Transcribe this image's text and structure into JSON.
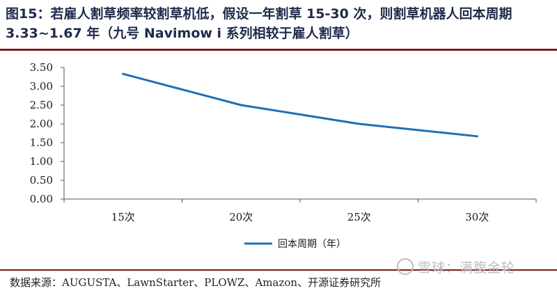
{
  "title": "图15：若雇人割草频率较割草机低，假设一年割草 15-30 次，则割草机器人回本周期 3.33~1.67 年（九号 Navimow i 系列相较于雇人割草）",
  "source": "数据来源：AUGUSTA、LawnStarter、PLOWZ、Amazon、开源证券研究所",
  "watermark": "雪球：满腹金轮",
  "colors": {
    "line": "#1f6fb2",
    "title": "#1f2a4a",
    "rule": "#7a1f1f",
    "axis": "#555555"
  },
  "chart_data": {
    "type": "line",
    "categories": [
      "15次",
      "20次",
      "25次",
      "30次"
    ],
    "series": [
      {
        "name": "回本周期（年）",
        "values": [
          3.33,
          2.5,
          2.0,
          1.67
        ]
      }
    ],
    "ylim": [
      0,
      3.5
    ],
    "yticks": [
      "3.50",
      "3.00",
      "2.50",
      "2.00",
      "1.50",
      "1.00",
      "0.50",
      "0.00"
    ],
    "grid": false,
    "legend": "bottom-center"
  }
}
